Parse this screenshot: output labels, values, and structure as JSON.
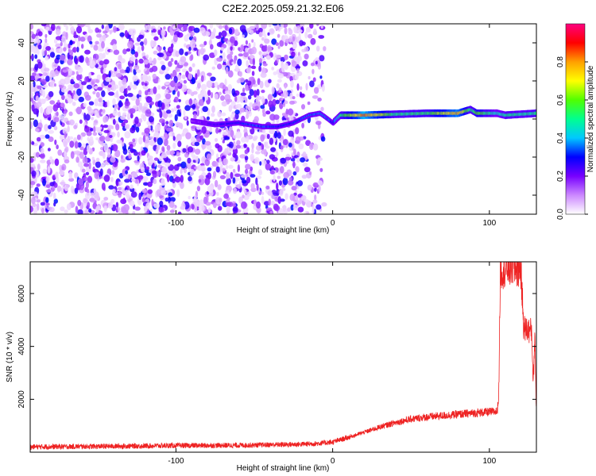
{
  "title": "C2E2.2025.059.21.32.E06",
  "chart_data": [
    {
      "type": "heatmap",
      "xlabel": "Height of straight line (km)",
      "ylabel": "Frequency (Hz)",
      "xlim": [
        -193,
        130
      ],
      "ylim": [
        -50,
        50
      ],
      "x_ticks": [
        -100,
        0,
        100
      ],
      "y_ticks": [
        -40,
        -20,
        0,
        20,
        40
      ],
      "colorbar": {
        "label": "Normalized spectral amplitude",
        "range": [
          0,
          1
        ],
        "ticks": [
          "0.0",
          "0.2",
          "0.4",
          "0.6",
          "0.8"
        ],
        "tick_values": [
          0,
          0.2,
          0.4,
          0.6,
          0.8
        ],
        "colors": [
          "#ffffff",
          "#cc88ff",
          "#7700ff",
          "#0000ff",
          "#00c8ff",
          "#00ff90",
          "#50ff00",
          "#ffff00",
          "#ffa000",
          "#ff0000",
          "#ff0080"
        ]
      },
      "trace": {
        "x": [
          -90,
          -75,
          -60,
          -45,
          -35,
          -25,
          -15,
          -8,
          -3,
          0,
          5,
          20,
          40,
          60,
          80,
          88,
          92,
          105,
          110,
          130
        ],
        "y": [
          -1,
          -3,
          -2,
          -4,
          -4,
          -2,
          2,
          3,
          0,
          -2,
          2,
          2,
          2.5,
          3,
          3,
          5,
          3,
          3,
          2,
          3
        ],
        "amplitude": [
          0.15,
          0.25,
          0.3,
          0.35,
          0.3,
          0.3,
          0.35,
          0.35,
          0.35,
          0.3,
          0.5,
          0.85,
          0.5,
          0.55,
          0.8,
          0.5,
          0.6,
          0.45,
          0.5,
          0.5
        ]
      }
    },
    {
      "type": "line",
      "xlabel": "Height of straight line (km)",
      "ylabel": "SNR (10 * v/v)",
      "xlim": [
        -193,
        130
      ],
      "ylim": [
        0,
        7200
      ],
      "x_ticks": [
        -100,
        0,
        100
      ],
      "y_ticks": [
        2000,
        4000,
        6000
      ],
      "color": "#ee2222",
      "series": [
        {
          "x": [
            -193,
            -150,
            -100,
            -60,
            -20,
            -10,
            0,
            10,
            20,
            30,
            40,
            50,
            60,
            70,
            80,
            90,
            100,
            105,
            106,
            107,
            110,
            115,
            120,
            122,
            125,
            127,
            128,
            129,
            130
          ],
          "y": [
            200,
            220,
            250,
            260,
            300,
            330,
            380,
            560,
            750,
            950,
            1120,
            1250,
            1330,
            1380,
            1430,
            1480,
            1520,
            1540,
            2200,
            6900,
            6950,
            7000,
            6950,
            4700,
            4600,
            4600,
            2600,
            4500,
            1400
          ]
        }
      ]
    }
  ]
}
